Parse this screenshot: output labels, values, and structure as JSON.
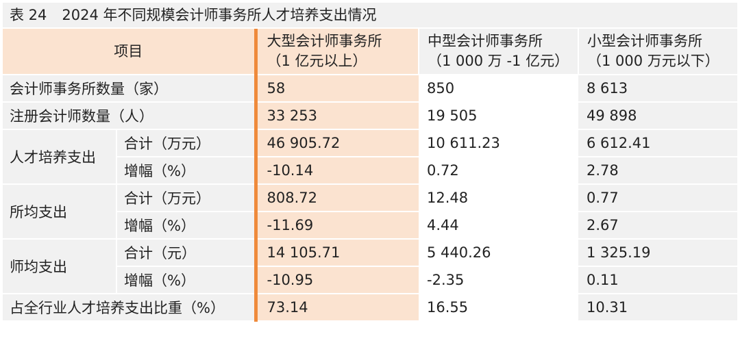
{
  "caption": {
    "number": "表 24",
    "title": "2024 年不同规模会计师事务所人才培养支出情况"
  },
  "header": {
    "item": "项目",
    "columns": [
      {
        "line1": "大型会计师事务所",
        "line2": "（1 亿元以上）"
      },
      {
        "line1": "中型会计师事务所",
        "line2": "（1 000 万 -1 亿元）"
      },
      {
        "line1": "小型会计师事务所",
        "line2": "（1 000 万元以下）"
      }
    ]
  },
  "rows": {
    "firms_count": {
      "label": "会计师事务所数量（家）",
      "values": [
        "58",
        "850",
        "8 613"
      ]
    },
    "cpa_count": {
      "label": "注册会计师数量（人）",
      "values": [
        "33 253",
        "19 505",
        "49 898"
      ]
    },
    "talent_total": {
      "group": "人才培养支出",
      "sub": "合计（万元）",
      "values": [
        "46 905.72",
        "10 611.23",
        "6 612.41"
      ]
    },
    "talent_growth": {
      "sub": "增幅（%）",
      "values": [
        "-10.14",
        "0.72",
        "2.78"
      ]
    },
    "per_firm_total": {
      "group": "所均支出",
      "sub": "合计（万元）",
      "values": [
        "808.72",
        "12.48",
        "0.77"
      ]
    },
    "per_firm_growth": {
      "sub": "增幅（%）",
      "values": [
        "-11.69",
        "4.44",
        "2.67"
      ]
    },
    "per_cpa_total": {
      "group": "师均支出",
      "sub": "合计（元）",
      "values": [
        "14 105.71",
        "5 440.26",
        "1 325.19"
      ]
    },
    "per_cpa_growth": {
      "sub": "增幅（%）",
      "values": [
        "-10.95",
        "-2.35",
        "0.11"
      ]
    },
    "share": {
      "label": "占全行业人才培养支出比重（%）",
      "values": [
        "73.14",
        "16.55",
        "10.31"
      ]
    }
  },
  "colors": {
    "accent": "#ef8a3b",
    "large_fill": "#fbe3d0",
    "gray_fill": "#f1f1f1"
  }
}
